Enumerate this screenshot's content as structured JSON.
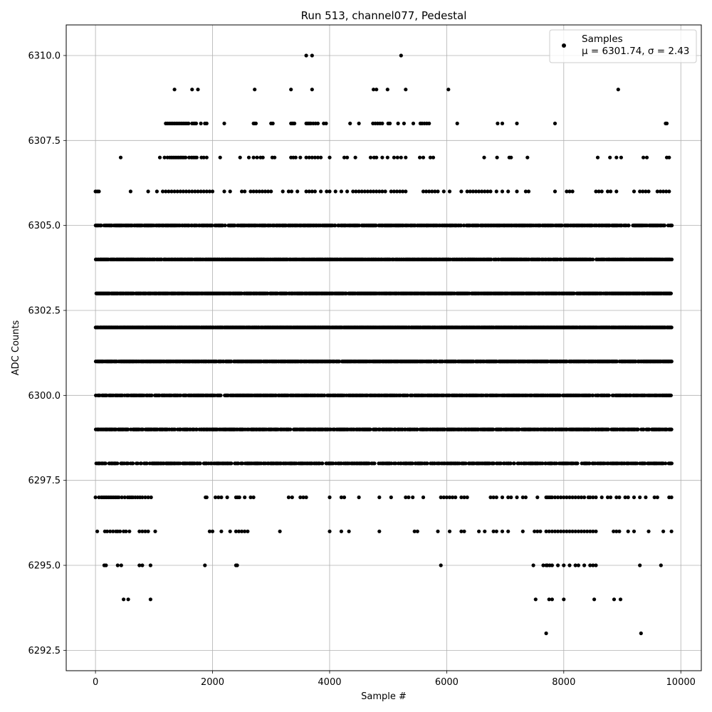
{
  "chart_data": {
    "type": "scatter",
    "title": "Run 513, channel077, Pedestal",
    "xlabel": "Sample #",
    "ylabel": "ADC Counts",
    "xlim": [
      -500,
      10350
    ],
    "ylim": [
      6291.9,
      6310.9
    ],
    "xticks": [
      0,
      2000,
      4000,
      6000,
      8000,
      10000
    ],
    "yticks": [
      6292.5,
      6295.0,
      6297.5,
      6300.0,
      6302.5,
      6305.0,
      6307.5,
      6310.0
    ],
    "xtick_labels": [
      "0",
      "2000",
      "4000",
      "6000",
      "8000",
      "10000"
    ],
    "ytick_labels": [
      "6292.5",
      "6295.0",
      "6297.5",
      "6300.0",
      "6302.5",
      "6305.0",
      "6307.5",
      "6310.0"
    ],
    "grid": true,
    "marker_color": "#000000",
    "legend": {
      "placement": "top-right",
      "entries": [
        {
          "label_line1": "Samples",
          "label_line2": "μ = 6301.74, σ = 2.43"
        }
      ]
    },
    "series": [
      {
        "name": "Samples",
        "x_range": [
          0,
          9840
        ],
        "n_samples": 9841,
        "rows": [
          {
            "y": 6310,
            "x": [
              3600,
              3700,
              5220
            ]
          },
          {
            "y": 6309,
            "x": [
              1350,
              1650,
              1750,
              2720,
              3340,
              3700,
              4750,
              4800,
              4990,
              5300,
              6030,
              8930
            ]
          },
          {
            "y": 6308,
            "x": [
              1200,
              1230,
              1260,
              1290,
              1320,
              1350,
              1380,
              1410,
              1440,
              1470,
              1500,
              1530,
              1560,
              1590,
              1650,
              1680,
              1700,
              1720,
              1800,
              1870,
              1900,
              2200,
              2700,
              2720,
              2740,
              3000,
              3030,
              3340,
              3360,
              3380,
              3400,
              3600,
              3620,
              3640,
              3660,
              3680,
              3720,
              3760,
              3800,
              3900,
              3940,
              4350,
              4500,
              4740,
              4780,
              4820,
              4860,
              4900,
              5000,
              5030,
              5170,
              5270,
              5430,
              5550,
              5580,
              5620,
              5660,
              5700,
              6180,
              6870,
              6950,
              7200,
              7850,
              9740,
              9760
            ]
          },
          {
            "y": 6307,
            "x": [
              430,
              1100,
              1180,
              1230,
              1270,
              1300,
              1330,
              1360,
              1390,
              1420,
              1450,
              1480,
              1510,
              1540,
              1600,
              1640,
              1670,
              1700,
              1730,
              1810,
              1850,
              1900,
              2130,
              2470,
              2620,
              2700,
              2760,
              2820,
              2860,
              3020,
              3060,
              3340,
              3380,
              3420,
              3500,
              3600,
              3650,
              3700,
              3750,
              3800,
              3850,
              4000,
              4250,
              4300,
              4440,
              4700,
              4760,
              4800,
              4900,
              4990,
              5100,
              5160,
              5220,
              5300,
              5540,
              5600,
              5720,
              5770,
              6640,
              6860,
              7070,
              7100,
              7380,
              8580,
              8790,
              8900,
              8980,
              9360,
              9420,
              9760,
              9800
            ]
          },
          {
            "y": 6306,
            "x": [
              0,
              30,
              60,
              600,
              900,
              1050,
              1150,
              1200,
              1250,
              1300,
              1350,
              1400,
              1450,
              1500,
              1550,
              1600,
              1650,
              1700,
              1750,
              1800,
              1850,
              1900,
              1950,
              2000,
              2200,
              2300,
              2500,
              2550,
              2650,
              2700,
              2750,
              2800,
              2850,
              2900,
              2950,
              3000,
              3200,
              3300,
              3350,
              3450,
              3600,
              3650,
              3700,
              3750,
              3850,
              3950,
              4000,
              4100,
              4200,
              4300,
              4400,
              4450,
              4500,
              4550,
              4600,
              4650,
              4700,
              4750,
              4800,
              4850,
              4900,
              4950,
              5050,
              5100,
              5150,
              5200,
              5250,
              5300,
              5600,
              5650,
              5700,
              5750,
              5800,
              5850,
              5950,
              6050,
              6250,
              6350,
              6400,
              6450,
              6500,
              6550,
              6600,
              6650,
              6700,
              6750,
              6850,
              6950,
              7050,
              7200,
              7350,
              7400,
              7850,
              8050,
              8100,
              8150,
              8550,
              8600,
              8650,
              8750,
              8800,
              8900,
              9200,
              9300,
              9350,
              9400,
              9450,
              9600,
              9650,
              9700,
              9750,
              9800
            ]
          }
        ],
        "dense_rows": [
          {
            "y": 6305,
            "density": 0.72
          },
          {
            "y": 6304,
            "density": 0.82
          },
          {
            "y": 6303,
            "density": 0.88
          },
          {
            "y": 6302,
            "density": 0.96
          },
          {
            "y": 6301,
            "density": 0.86
          },
          {
            "y": 6300,
            "density": 0.78
          },
          {
            "y": 6299,
            "density": 0.7
          },
          {
            "y": 6298,
            "density": 0.62
          }
        ],
        "sparse_rows": [
          {
            "y": 6297,
            "x": [
              0,
              60,
              100,
              130,
              160,
              190,
              220,
              250,
              280,
              310,
              340,
              370,
              400,
              450,
              500,
              550,
              580,
              610,
              640,
              680,
              720,
              760,
              800,
              850,
              900,
              950,
              1880,
              1900,
              2050,
              2100,
              2150,
              2250,
              2400,
              2430,
              2460,
              2550,
              2650,
              2700,
              3300,
              3360,
              3500,
              3550,
              3600,
              4000,
              4200,
              4250,
              4500,
              4850,
              5050,
              5300,
              5350,
              5420,
              5600,
              5900,
              5950,
              6000,
              6050,
              6100,
              6150,
              6250,
              6300,
              6350,
              6750,
              6800,
              6850,
              6950,
              7050,
              7100,
              7200,
              7300,
              7350,
              7550,
              7700,
              7720,
              7750,
              7780,
              7800,
              7850,
              7900,
              7950,
              8000,
              8050,
              8100,
              8150,
              8200,
              8250,
              8300,
              8350,
              8420,
              8450,
              8500,
              8550,
              8650,
              8750,
              8800,
              8900,
              8950,
              9050,
              9100,
              9200,
              9300,
              9400,
              9550,
              9600,
              9800,
              9840
            ]
          },
          {
            "y": 6296,
            "x": [
              30,
              160,
              200,
              250,
              300,
              350,
              380,
              420,
              480,
              520,
              580,
              750,
              800,
              850,
              900,
              1020,
              1950,
              2000,
              2150,
              2300,
              2400,
              2450,
              2500,
              2550,
              2600,
              3150,
              4000,
              4200,
              4330,
              4850,
              5450,
              5500,
              5850,
              6050,
              6250,
              6300,
              6550,
              6650,
              6800,
              6850,
              6950,
              7050,
              7300,
              7500,
              7550,
              7600,
              7700,
              7750,
              7800,
              7850,
              7900,
              7950,
              8000,
              8050,
              8100,
              8150,
              8200,
              8250,
              8300,
              8350,
              8400,
              8450,
              8500,
              8550,
              8850,
              8900,
              8950,
              9100,
              9200,
              9450,
              9700,
              9840
            ]
          },
          {
            "y": 6295,
            "x": [
              150,
              180,
              380,
              440,
              750,
              800,
              940,
              1870,
              2400,
              2420,
              5900,
              7480,
              7650,
              7700,
              7720,
              7760,
              7800,
              7900,
              8000,
              8100,
              8200,
              8250,
              8350,
              8450,
              8500,
              8550,
              9300,
              9660
            ]
          },
          {
            "y": 6294,
            "x": [
              480,
              560,
              940,
              7520,
              7750,
              7800,
              8000,
              8520,
              8860,
              8970
            ]
          },
          {
            "y": 6293,
            "x": [
              7700,
              9320
            ]
          }
        ]
      }
    ]
  }
}
